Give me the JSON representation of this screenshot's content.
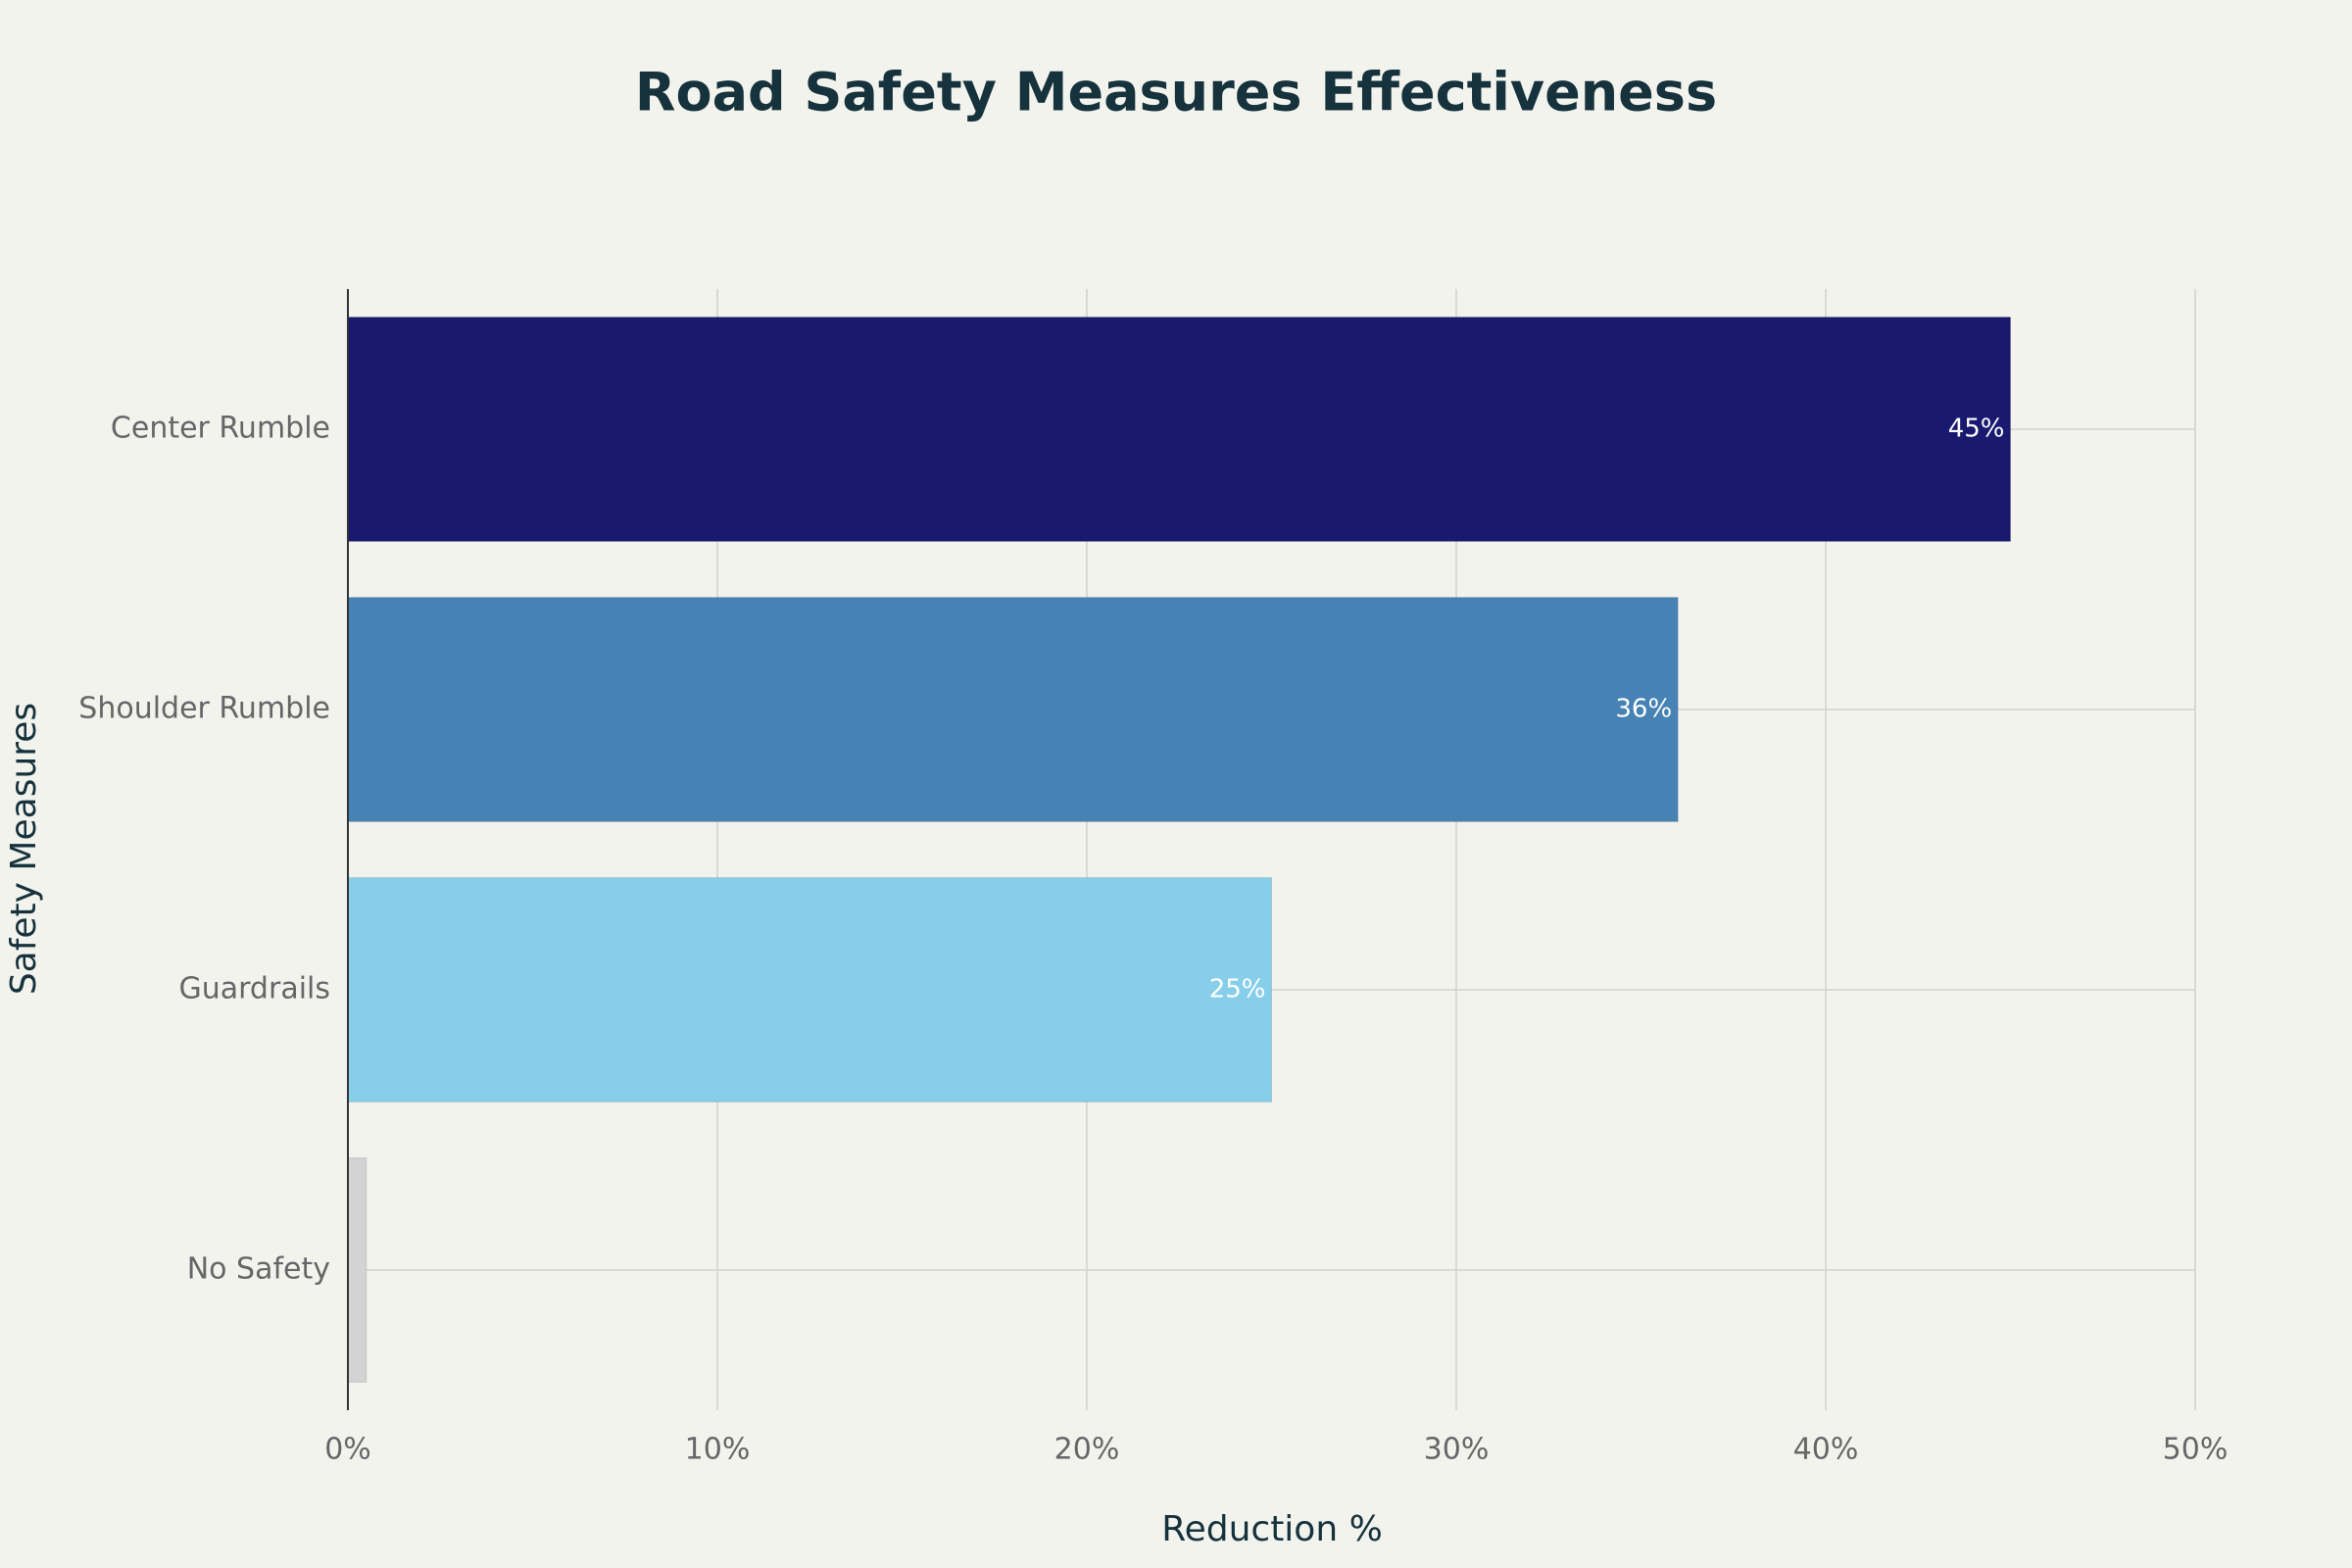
{
  "chart_data": {
    "type": "bar",
    "orientation": "horizontal",
    "title": "Road Safety Measures Effectiveness",
    "x_label": "Reduction %",
    "y_label": "Safety Measures",
    "categories": [
      "Center Rumble",
      "Shoulder Rumble",
      "Guardrails",
      "No Safety"
    ],
    "values": [
      45,
      36,
      25,
      0.5
    ],
    "value_labels": [
      "45%",
      "36%",
      "25%",
      null
    ],
    "colors": [
      "#191970",
      "#4682B4",
      "#87CEEB",
      "#D3D3D3"
    ],
    "xlim": [
      0,
      50
    ],
    "xticks": [
      {
        "value": 0,
        "label": "0%"
      },
      {
        "value": 10,
        "label": "10%"
      },
      {
        "value": 20,
        "label": "20%"
      },
      {
        "value": 30,
        "label": "30%"
      },
      {
        "value": 40,
        "label": "40%"
      },
      {
        "value": 50,
        "label": "50%"
      }
    ],
    "grid": true
  }
}
